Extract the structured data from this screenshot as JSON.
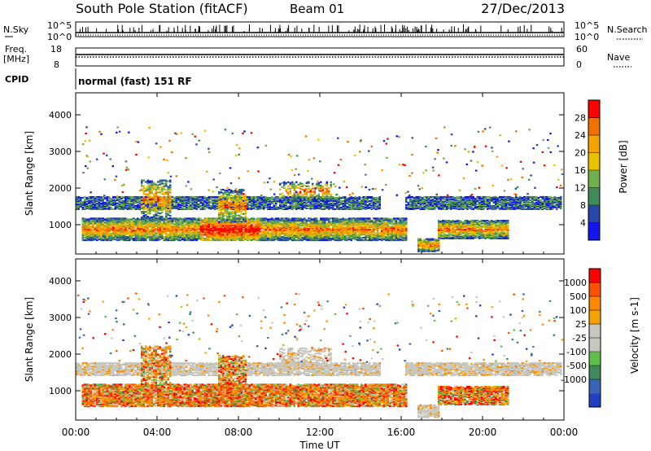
{
  "header": {
    "station": "South Pole Station (fitACF)",
    "beam": "Beam 01",
    "date": "27/Dec/2013"
  },
  "strip_labels": {
    "nsky": "N.Sky",
    "nsky_top": "10^5",
    "nsky_bottom": "10^0",
    "nsearch": "N.Search",
    "nsearch_top": "10^5",
    "nsearch_bottom": "10^0",
    "freq_line1": "Freq.",
    "freq_line2": "[MHz]",
    "freq_top": "18",
    "freq_bottom": "8",
    "nave": "Nave",
    "nave_top": "60",
    "nave_bottom": "0",
    "cpid": "CPID",
    "cpid_text": "normal (fast) 151 RF"
  },
  "chart_data": [
    {
      "type": "heatmap",
      "name": "power",
      "ylabel": "Slant Range [km]",
      "ylim": [
        200,
        4600
      ],
      "yticks": [
        1000,
        2000,
        3000,
        4000
      ],
      "colorbar": {
        "label": "Power [dB]",
        "ticks": [
          "4",
          "8",
          "12",
          "16",
          "20",
          "24",
          "28"
        ],
        "colors": [
          "#1515f2",
          "#2946a8",
          "#3f8a58",
          "#6fb04b",
          "#e8c200",
          "#f5a300",
          "#f07000",
          "#ff0000"
        ]
      }
    },
    {
      "type": "heatmap",
      "name": "velocity",
      "ylabel": "Slant Range [km]",
      "ylim": [
        200,
        4600
      ],
      "yticks": [
        1000,
        2000,
        3000,
        4000
      ],
      "colorbar": {
        "label": "Velocity [m s-1]",
        "ticks": [
          "1000",
          "500",
          "100",
          "25",
          "-25",
          "-100",
          "-500",
          "-1000"
        ],
        "colors": [
          "#2040c0",
          "#3a64b8",
          "#3f8a58",
          "#5ec04a",
          "#c8c8c0",
          "#c8c8c0",
          "#f5a300",
          "#ff8800",
          "#ff5000",
          "#ff0000"
        ]
      }
    }
  ],
  "time_axis": {
    "label": "Time UT",
    "ticks": [
      "00:00",
      "04:00",
      "08:00",
      "12:00",
      "16:00",
      "20:00",
      "00:00"
    ]
  },
  "colors": {
    "axis": "#000000",
    "ground_scatter": "#c8c8c0"
  }
}
